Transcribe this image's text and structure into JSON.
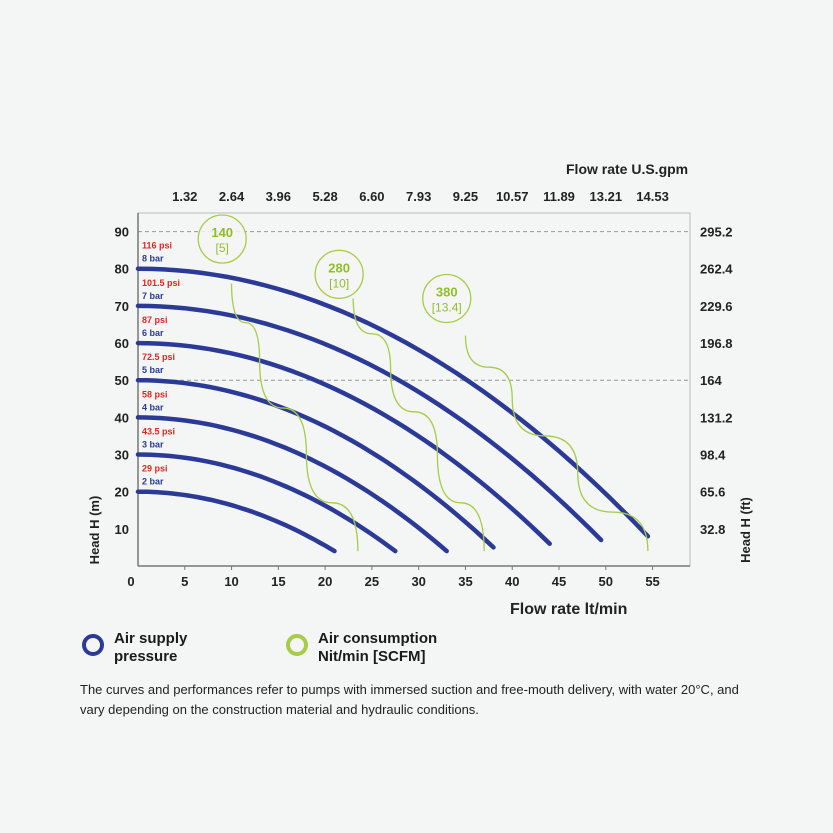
{
  "chart_data": {
    "type": "line",
    "xlabel": "Flow rate lt/min",
    "ylabel": "Head H (m)",
    "x2label": "Flow rate U.S.gpm",
    "y2label": "Head H (ft)",
    "xlim": [
      0,
      59
    ],
    "ylim": [
      0,
      95
    ],
    "x_ticks": [
      0,
      5,
      10,
      15,
      20,
      25,
      30,
      35,
      40,
      45,
      50,
      55
    ],
    "y_ticks": [
      10,
      20,
      30,
      40,
      50,
      60,
      70,
      80,
      90
    ],
    "gpm_ticks": [
      {
        "x": 5,
        "label": "1.32"
      },
      {
        "x": 10,
        "label": "2.64"
      },
      {
        "x": 15,
        "label": "3.96"
      },
      {
        "x": 20,
        "label": "5.28"
      },
      {
        "x": 25,
        "label": "6.60"
      },
      {
        "x": 30,
        "label": "7.93"
      },
      {
        "x": 35,
        "label": "9.25"
      },
      {
        "x": 40,
        "label": "10.57"
      },
      {
        "x": 45,
        "label": "11.89"
      },
      {
        "x": 50,
        "label": "13.21"
      },
      {
        "x": 55,
        "label": "14.53"
      }
    ],
    "ft_ticks": [
      {
        "y": 10,
        "label": "32.8"
      },
      {
        "y": 20,
        "label": "65.6"
      },
      {
        "y": 30,
        "label": "98.4"
      },
      {
        "y": 40,
        "label": "131.2"
      },
      {
        "y": 50,
        "label": "164"
      },
      {
        "y": 60,
        "label": "196.8"
      },
      {
        "y": 70,
        "label": "229.6"
      },
      {
        "y": 80,
        "label": "262.4"
      },
      {
        "y": 90,
        "label": "295.2"
      }
    ],
    "dashed_gridlines_y": [
      50,
      90
    ],
    "pressure_series": [
      {
        "psi": "29 psi",
        "bar": "2 bar",
        "x": [
          0,
          21
        ],
        "y": [
          20,
          4
        ]
      },
      {
        "psi": "43.5 psi",
        "bar": "3 bar",
        "x": [
          0,
          27.5
        ],
        "y": [
          30,
          4
        ]
      },
      {
        "psi": "58 psi",
        "bar": "4 bar",
        "x": [
          0,
          33
        ],
        "y": [
          40,
          4
        ]
      },
      {
        "psi": "72.5 psi",
        "bar": "5 bar",
        "x": [
          0,
          38
        ],
        "y": [
          50,
          5
        ]
      },
      {
        "psi": "87 psi",
        "bar": "6 bar",
        "x": [
          0,
          44
        ],
        "y": [
          60,
          6
        ]
      },
      {
        "psi": "101.5 psi",
        "bar": "7 bar",
        "x": [
          0,
          49.5
        ],
        "y": [
          70,
          7
        ]
      },
      {
        "psi": "116 psi",
        "bar": "8 bar",
        "x": [
          0,
          54.5
        ],
        "y": [
          80,
          8
        ]
      }
    ],
    "consumption_series": [
      {
        "nl": "140",
        "scfm": "[5]",
        "label_at": [
          9,
          88
        ],
        "x": [
          10,
          13,
          18,
          23.5
        ],
        "y": [
          76,
          55,
          30,
          4
        ]
      },
      {
        "nl": "280",
        "scfm": "[10]",
        "label_at": [
          21.5,
          78.5
        ],
        "x": [
          23,
          27,
          32,
          37
        ],
        "y": [
          72,
          53,
          30,
          4
        ]
      },
      {
        "nl": "380",
        "scfm": "[13.4]",
        "label_at": [
          33,
          72
        ],
        "x": [
          35,
          40,
          47,
          54.5
        ],
        "y": [
          62,
          45,
          25,
          4
        ]
      }
    ]
  },
  "legend": {
    "pressure_line1": "Air supply",
    "pressure_line2": "pressure",
    "consumption_line1": "Air consumption",
    "consumption_line2": "Nit/min [SCFM]",
    "pressure_color": "#2b3a97",
    "consumption_color": "#a6cc48"
  },
  "note": "The curves and performances refer to pumps with immersed suction and free-mouth delivery, with water 20°C, and vary depending on the construction material and hydraulic conditions.",
  "colors": {
    "pressure_line": "#2b3a97",
    "consumption_line": "#a6cc48",
    "psi_label": "#e52421",
    "bar_label": "#2b3a97",
    "axis": "#777777",
    "grid": "#bbbbbb"
  }
}
